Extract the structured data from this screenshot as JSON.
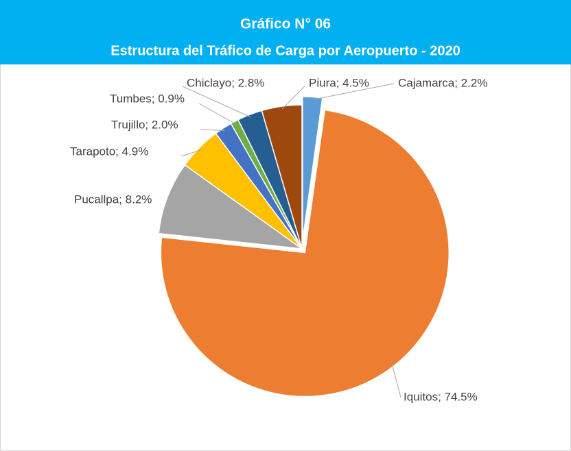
{
  "chart_data": {
    "type": "pie",
    "title": "Gráfico N° 06",
    "subtitle": "Estructura del Tráfico de Carga por Aeropuerto - 2020",
    "values": [
      2.2,
      74.5,
      8.2,
      4.9,
      2.0,
      0.9,
      2.8,
      4.5
    ],
    "value_labels": [
      "Cajamarca; 2.2%",
      "Iquitos; 74.5%",
      "Pucallpa; 8.2%",
      "Tarapoto; 4.9%",
      "Trujillo; 2.0%",
      "Tumbes; 0.9%",
      "Chiclayo; 2.8%",
      "Piura; 4.5%"
    ],
    "colors": [
      "#5b9bd5",
      "#ed7d31",
      "#a5a5a5",
      "#ffc000",
      "#4472c4",
      "#70ad47",
      "#255e91",
      "#9e480e"
    ]
  }
}
